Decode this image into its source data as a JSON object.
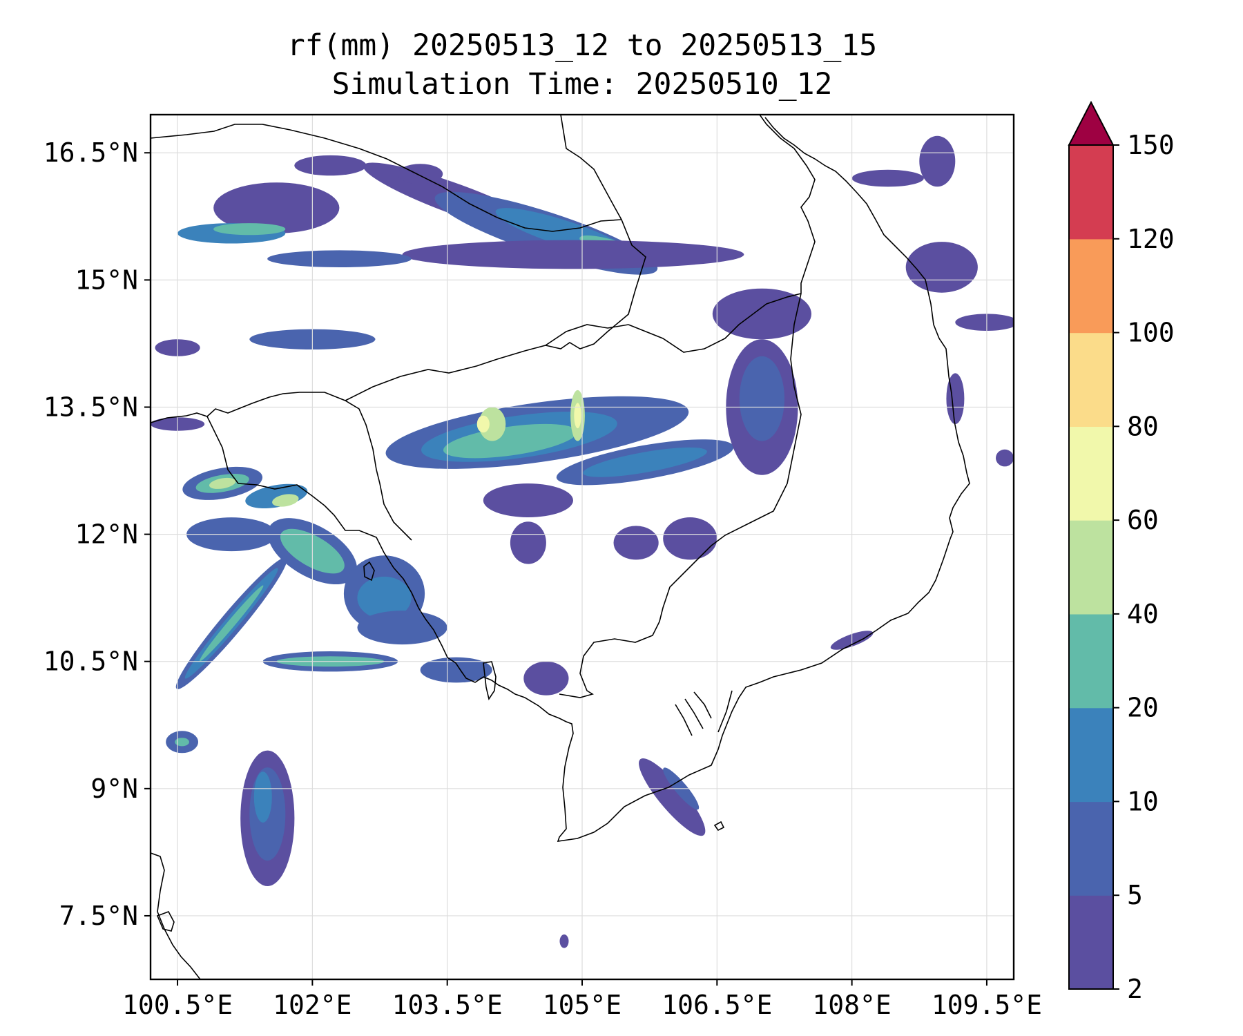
{
  "title": {
    "line1": "rf(mm) 20250513_12 to 20250513_15",
    "line2": "Simulation Time: 20250510_12"
  },
  "map": {
    "lon_range": [
      100.2,
      109.8
    ],
    "lat_range": [
      6.75,
      16.95
    ],
    "x_ticks": [
      {
        "value": 100.5,
        "label": "100.5°E"
      },
      {
        "value": 102,
        "label": "102°E"
      },
      {
        "value": 103.5,
        "label": "103.5°E"
      },
      {
        "value": 105,
        "label": "105°E"
      },
      {
        "value": 106.5,
        "label": "106.5°E"
      },
      {
        "value": 108,
        "label": "108°E"
      },
      {
        "value": 109.5,
        "label": "109.5°E"
      }
    ],
    "y_ticks": [
      {
        "value": 16.5,
        "label": "16.5°N"
      },
      {
        "value": 15,
        "label": "15°N"
      },
      {
        "value": 13.5,
        "label": "13.5°N"
      },
      {
        "value": 12,
        "label": "12°N"
      },
      {
        "value": 10.5,
        "label": "10.5°N"
      },
      {
        "value": 9,
        "label": "9°N"
      },
      {
        "value": 7.5,
        "label": "7.5°N"
      }
    ],
    "grid": true
  },
  "colorbar": {
    "levels": [
      "2",
      "5",
      "10",
      "20",
      "40",
      "60",
      "80",
      "100",
      "120",
      "150"
    ],
    "colors": [
      "#5b4fa0",
      "#4a64ae",
      "#3b82bb",
      "#62bba9",
      "#bde29f",
      "#f1f8ab",
      "#fbdc8a",
      "#f99b59",
      "#d43d51"
    ],
    "extend_color": "#9e0142"
  },
  "rain_cells": [
    {
      "lon": 103.6,
      "lat": 15.95,
      "rlon": 1.1,
      "rlat": 0.18,
      "rot": 20,
      "level": 0
    },
    {
      "lon": 104.6,
      "lat": 15.55,
      "rlon": 1.3,
      "rlat": 0.25,
      "rot": 18,
      "level": 1
    },
    {
      "lon": 104.8,
      "lat": 15.55,
      "rlon": 0.8,
      "rlat": 0.15,
      "rot": 18,
      "level": 2
    },
    {
      "lon": 105.4,
      "lat": 15.35,
      "rlon": 0.45,
      "rlat": 0.1,
      "rot": 18,
      "level": 3
    },
    {
      "lon": 104.9,
      "lat": 15.3,
      "rlon": 1.9,
      "rlat": 0.17,
      "rot": 0,
      "level": 0
    },
    {
      "lon": 101.6,
      "lat": 15.85,
      "rlon": 0.7,
      "rlat": 0.3,
      "rot": 0,
      "level": 0
    },
    {
      "lon": 101.1,
      "lat": 15.55,
      "rlon": 0.6,
      "rlat": 0.12,
      "rot": 0,
      "level": 2
    },
    {
      "lon": 101.3,
      "lat": 15.6,
      "rlon": 0.4,
      "rlat": 0.07,
      "rot": 0,
      "level": 3
    },
    {
      "lon": 102.2,
      "lat": 16.35,
      "rlon": 0.4,
      "rlat": 0.12,
      "rot": 0,
      "level": 0
    },
    {
      "lon": 103.2,
      "lat": 16.25,
      "rlon": 0.25,
      "rlat": 0.12,
      "rot": 0,
      "level": 0
    },
    {
      "lon": 102.3,
      "lat": 15.25,
      "rlon": 0.8,
      "rlat": 0.1,
      "rot": 0,
      "level": 1
    },
    {
      "lon": 102.0,
      "lat": 14.3,
      "rlon": 0.7,
      "rlat": 0.12,
      "rot": 0,
      "level": 1
    },
    {
      "lon": 100.5,
      "lat": 14.2,
      "rlon": 0.25,
      "rlat": 0.1,
      "rot": 0,
      "level": 0
    },
    {
      "lon": 100.5,
      "lat": 13.3,
      "rlon": 0.3,
      "rlat": 0.08,
      "rot": 0,
      "level": 0
    },
    {
      "lon": 104.5,
      "lat": 13.2,
      "rlon": 1.7,
      "rlat": 0.35,
      "rot": -8,
      "level": 1
    },
    {
      "lon": 104.3,
      "lat": 13.15,
      "rlon": 1.1,
      "rlat": 0.25,
      "rot": -8,
      "level": 2
    },
    {
      "lon": 104.2,
      "lat": 13.1,
      "rlon": 0.75,
      "rlat": 0.17,
      "rot": -8,
      "level": 3
    },
    {
      "lon": 104.0,
      "lat": 13.3,
      "rlon": 0.15,
      "rlat": 0.2,
      "rot": 0,
      "level": 4
    },
    {
      "lon": 103.9,
      "lat": 13.3,
      "rlon": 0.07,
      "rlat": 0.1,
      "rot": 0,
      "level": 5
    },
    {
      "lon": 104.95,
      "lat": 13.4,
      "rlon": 0.08,
      "rlat": 0.3,
      "rot": 0,
      "level": 4
    },
    {
      "lon": 104.95,
      "lat": 13.4,
      "rlon": 0.04,
      "rlat": 0.15,
      "rot": 0,
      "level": 5
    },
    {
      "lon": 105.7,
      "lat": 12.85,
      "rlon": 1.0,
      "rlat": 0.2,
      "rot": -10,
      "level": 1
    },
    {
      "lon": 105.7,
      "lat": 12.85,
      "rlon": 0.7,
      "rlat": 0.12,
      "rot": -10,
      "level": 2
    },
    {
      "lon": 104.4,
      "lat": 12.4,
      "rlon": 0.5,
      "rlat": 0.2,
      "rot": 0,
      "level": 0
    },
    {
      "lon": 107.0,
      "lat": 14.6,
      "rlon": 0.55,
      "rlat": 0.3,
      "rot": 0,
      "level": 0
    },
    {
      "lon": 107.0,
      "lat": 13.5,
      "rlon": 0.4,
      "rlat": 0.8,
      "rot": 0,
      "level": 0
    },
    {
      "lon": 107.0,
      "lat": 13.6,
      "rlon": 0.25,
      "rlat": 0.5,
      "rot": 0,
      "level": 1
    },
    {
      "lon": 108.95,
      "lat": 16.4,
      "rlon": 0.2,
      "rlat": 0.3,
      "rot": 0,
      "level": 0
    },
    {
      "lon": 108.4,
      "lat": 16.2,
      "rlon": 0.4,
      "rlat": 0.1,
      "rot": 0,
      "level": 0
    },
    {
      "lon": 109.0,
      "lat": 15.15,
      "rlon": 0.4,
      "rlat": 0.3,
      "rot": 0,
      "level": 0
    },
    {
      "lon": 109.5,
      "lat": 14.5,
      "rlon": 0.35,
      "rlat": 0.1,
      "rot": 0,
      "level": 0
    },
    {
      "lon": 109.15,
      "lat": 13.6,
      "rlon": 0.1,
      "rlat": 0.3,
      "rot": 0,
      "level": 0
    },
    {
      "lon": 101.0,
      "lat": 12.6,
      "rlon": 0.45,
      "rlat": 0.18,
      "rot": -10,
      "level": 1
    },
    {
      "lon": 101.0,
      "lat": 12.6,
      "rlon": 0.3,
      "rlat": 0.1,
      "rot": -10,
      "level": 3
    },
    {
      "lon": 101.0,
      "lat": 12.6,
      "rlon": 0.15,
      "rlat": 0.06,
      "rot": -10,
      "level": 4
    },
    {
      "lon": 101.6,
      "lat": 12.45,
      "rlon": 0.35,
      "rlat": 0.13,
      "rot": -10,
      "level": 2
    },
    {
      "lon": 101.7,
      "lat": 12.4,
      "rlon": 0.15,
      "rlat": 0.07,
      "rot": -10,
      "level": 4
    },
    {
      "lon": 101.1,
      "lat": 12.0,
      "rlon": 0.5,
      "rlat": 0.2,
      "rot": 0,
      "level": 1
    },
    {
      "lon": 102.0,
      "lat": 11.8,
      "rlon": 0.55,
      "rlat": 0.3,
      "rot": 30,
      "level": 1
    },
    {
      "lon": 102.0,
      "lat": 11.8,
      "rlon": 0.4,
      "rlat": 0.18,
      "rot": 30,
      "level": 3
    },
    {
      "lon": 102.8,
      "lat": 11.3,
      "rlon": 0.45,
      "rlat": 0.45,
      "rot": 0,
      "level": 1
    },
    {
      "lon": 102.8,
      "lat": 11.25,
      "rlon": 0.3,
      "rlat": 0.25,
      "rot": 0,
      "level": 2
    },
    {
      "lon": 103.0,
      "lat": 10.9,
      "rlon": 0.5,
      "rlat": 0.2,
      "rot": 0,
      "level": 1
    },
    {
      "lon": 101.1,
      "lat": 10.95,
      "rlon": 0.95,
      "rlat": 0.13,
      "rot": -50,
      "level": 1
    },
    {
      "lon": 101.1,
      "lat": 10.95,
      "rlon": 0.8,
      "rlat": 0.08,
      "rot": -50,
      "level": 2
    },
    {
      "lon": 101.1,
      "lat": 10.95,
      "rlon": 0.55,
      "rlat": 0.045,
      "rot": -50,
      "level": 3
    },
    {
      "lon": 102.2,
      "lat": 10.5,
      "rlon": 0.75,
      "rlat": 0.12,
      "rot": 0,
      "level": 1
    },
    {
      "lon": 102.2,
      "lat": 10.5,
      "rlon": 0.6,
      "rlat": 0.06,
      "rot": 0,
      "level": 3
    },
    {
      "lon": 103.6,
      "lat": 10.4,
      "rlon": 0.4,
      "rlat": 0.15,
      "rot": 0,
      "level": 1
    },
    {
      "lon": 104.6,
      "lat": 10.3,
      "rlon": 0.25,
      "rlat": 0.2,
      "rot": 0,
      "level": 0
    },
    {
      "lon": 105.6,
      "lat": 11.9,
      "rlon": 0.25,
      "rlat": 0.2,
      "rot": 0,
      "level": 0
    },
    {
      "lon": 106.2,
      "lat": 11.95,
      "rlon": 0.3,
      "rlat": 0.25,
      "rot": 0,
      "level": 0
    },
    {
      "lon": 104.4,
      "lat": 11.9,
      "rlon": 0.2,
      "rlat": 0.25,
      "rot": 0,
      "level": 0
    },
    {
      "lon": 101.5,
      "lat": 8.65,
      "rlon": 0.3,
      "rlat": 0.8,
      "rot": 0,
      "level": 0
    },
    {
      "lon": 101.5,
      "lat": 8.7,
      "rlon": 0.2,
      "rlat": 0.55,
      "rot": 0,
      "level": 1
    },
    {
      "lon": 101.45,
      "lat": 8.9,
      "rlon": 0.1,
      "rlat": 0.3,
      "rot": 0,
      "level": 2
    },
    {
      "lon": 100.55,
      "lat": 9.55,
      "rlon": 0.18,
      "rlat": 0.13,
      "rot": 0,
      "level": 1
    },
    {
      "lon": 100.55,
      "lat": 9.55,
      "rlon": 0.08,
      "rlat": 0.05,
      "rot": 0,
      "level": 3
    },
    {
      "lon": 106.0,
      "lat": 8.9,
      "rlon": 0.55,
      "rlat": 0.15,
      "rot": 50,
      "level": 0
    },
    {
      "lon": 106.1,
      "lat": 9.0,
      "rlon": 0.3,
      "rlat": 0.07,
      "rot": 50,
      "level": 1
    },
    {
      "lon": 108.0,
      "lat": 10.75,
      "rlon": 0.25,
      "rlat": 0.07,
      "rot": -20,
      "level": 0
    },
    {
      "lon": 104.8,
      "lat": 7.2,
      "rlon": 0.05,
      "rlat": 0.08,
      "rot": 0,
      "level": 0
    },
    {
      "lon": 109.7,
      "lat": 12.9,
      "rlon": 0.1,
      "rlat": 0.1,
      "rot": 0,
      "level": 0
    }
  ]
}
